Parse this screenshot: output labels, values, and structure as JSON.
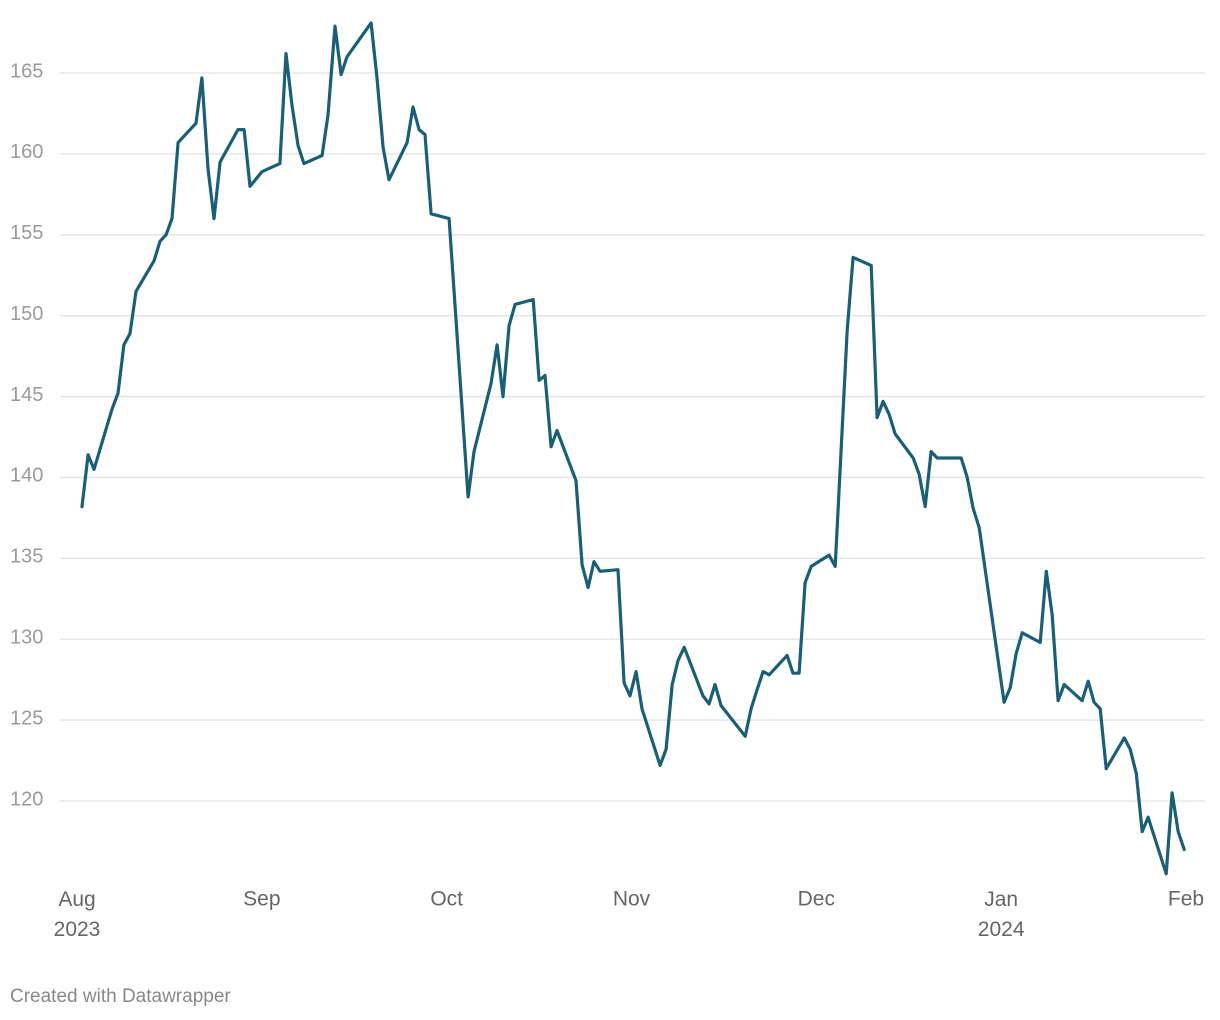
{
  "chart_data": {
    "type": "line",
    "color": "#1a5f75",
    "grid": true,
    "credit": "Created with Datawrapper",
    "xlim": [
      0,
      6
    ],
    "ylim": [
      115,
      168.5
    ],
    "yticks": [
      120,
      125,
      130,
      135,
      140,
      145,
      150,
      155,
      160,
      165
    ],
    "xticks": [
      {
        "value": 0,
        "label": "Aug 2023"
      },
      {
        "value": 1,
        "label": "Sep"
      },
      {
        "value": 2,
        "label": "Oct"
      },
      {
        "value": 3,
        "label": "Nov"
      },
      {
        "value": 4,
        "label": "Dec"
      },
      {
        "value": 5,
        "label": "Jan 2024"
      },
      {
        "value": 6,
        "label": "Feb"
      }
    ],
    "x": [
      0.027,
      0.06,
      0.092,
      0.189,
      0.222,
      0.254,
      0.287,
      0.319,
      0.417,
      0.449,
      0.482,
      0.514,
      0.547,
      0.644,
      0.676,
      0.709,
      0.741,
      0.774,
      0.871,
      0.904,
      0.936,
      1.001,
      1.098,
      1.131,
      1.163,
      1.196,
      1.228,
      1.326,
      1.358,
      1.396,
      1.429,
      1.461,
      1.591,
      1.623,
      1.656,
      1.688,
      1.786,
      1.818,
      1.851,
      1.883,
      1.916,
      2.013,
      2.116,
      2.148,
      2.24,
      2.273,
      2.305,
      2.338,
      2.37,
      2.468,
      2.5,
      2.532,
      2.565,
      2.597,
      2.7,
      2.733,
      2.765,
      2.797,
      2.83,
      2.927,
      2.96,
      2.992,
      3.025,
      3.057,
      3.155,
      3.187,
      3.22,
      3.252,
      3.285,
      3.387,
      3.42,
      3.452,
      3.485,
      3.615,
      3.647,
      3.68,
      3.712,
      3.745,
      3.842,
      3.874,
      3.907,
      3.939,
      3.972,
      4.069,
      4.102,
      4.167,
      4.199,
      4.297,
      4.329,
      4.361,
      4.394,
      4.426,
      4.524,
      4.556,
      4.589,
      4.621,
      4.654,
      4.784,
      4.816,
      4.848,
      4.881,
      5.016,
      5.049,
      5.081,
      5.114,
      5.211,
      5.244,
      5.276,
      5.308,
      5.341,
      5.438,
      5.471,
      5.503,
      5.536,
      5.568,
      5.666,
      5.698,
      5.731,
      5.763,
      5.795,
      5.893,
      5.925,
      5.958,
      5.99
    ],
    "values": [
      138.2,
      141.4,
      140.5,
      144.2,
      145.2,
      148.2,
      148.9,
      151.5,
      153.4,
      154.6,
      155.0,
      156.0,
      160.7,
      161.9,
      164.7,
      159.1,
      156.0,
      159.5,
      161.5,
      161.5,
      158.0,
      158.9,
      159.4,
      166.2,
      163.0,
      160.5,
      159.4,
      159.9,
      162.4,
      167.9,
      164.9,
      166.0,
      168.1,
      164.7,
      160.4,
      158.4,
      160.7,
      162.9,
      161.5,
      161.2,
      156.3,
      156.0,
      138.8,
      141.6,
      145.8,
      148.2,
      145.0,
      149.4,
      150.7,
      151.0,
      146.0,
      146.3,
      141.9,
      142.9,
      139.8,
      134.6,
      133.2,
      134.8,
      134.2,
      134.3,
      127.3,
      126.5,
      128.0,
      125.7,
      122.2,
      123.2,
      127.2,
      128.7,
      129.5,
      126.5,
      126.0,
      127.2,
      125.9,
      124.0,
      125.7,
      126.9,
      128.0,
      127.8,
      129.0,
      127.9,
      127.9,
      133.5,
      134.5,
      135.2,
      134.5,
      149.1,
      153.6,
      153.1,
      143.7,
      144.7,
      143.9,
      142.7,
      141.2,
      140.2,
      138.2,
      141.6,
      141.2,
      141.2,
      140.0,
      138.1,
      136.9,
      126.1,
      127.0,
      129.1,
      130.4,
      129.8,
      134.2,
      131.5,
      126.2,
      127.2,
      126.2,
      127.4,
      126.1,
      125.7,
      122.0,
      123.9,
      123.2,
      121.7,
      118.1,
      119.0,
      115.5,
      120.5,
      118.1,
      117.0
    ]
  }
}
